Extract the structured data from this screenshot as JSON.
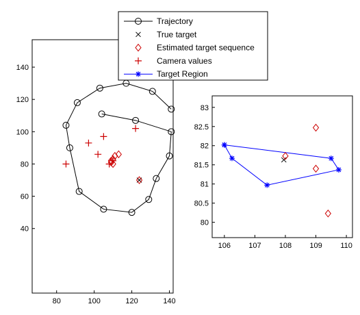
{
  "chart_data": [
    {
      "type": "scatter",
      "xlim": [
        67,
        142
      ],
      "ylim": [
        0,
        157
      ],
      "xticks": [
        80,
        100,
        120,
        140
      ],
      "yticks": [
        40,
        60,
        80,
        100,
        120,
        140
      ],
      "grid": false,
      "legend_position": "top-center",
      "series": [
        {
          "name": "Trajectory",
          "color": "#000000",
          "marker": "circle",
          "line": true,
          "x": [
            104,
            122,
            141,
            140,
            133,
            129,
            120,
            105,
            92,
            87,
            85,
            91,
            103,
            117,
            131,
            141
          ],
          "y": [
            111,
            107,
            100,
            85,
            71,
            58,
            50,
            52,
            63,
            90,
            104,
            118,
            127,
            130,
            125,
            114
          ]
        },
        {
          "name": "True target",
          "color": "#000000",
          "marker": "x",
          "line": false,
          "x": [
            124
          ],
          "y": [
            70
          ]
        },
        {
          "name": "Estimated target sequence",
          "color": "#cc0000",
          "marker": "diamond",
          "line": false,
          "x": [
            109,
            110,
            109,
            110,
            111,
            113,
            124
          ],
          "y": [
            82,
            80,
            81,
            83,
            85,
            86,
            70
          ]
        },
        {
          "name": "Camera values",
          "color": "#cc0000",
          "marker": "plus",
          "line": false,
          "x": [
            85,
            97,
            102,
            105,
            108,
            110,
            122
          ],
          "y": [
            80,
            93,
            86,
            97,
            80,
            82,
            102
          ]
        }
      ]
    },
    {
      "type": "scatter",
      "xlim": [
        105.6,
        110.2
      ],
      "ylim": [
        79.6,
        83.3
      ],
      "xticks": [
        106,
        107,
        108,
        109,
        110
      ],
      "yticks": [
        80,
        80.5,
        81,
        81.5,
        82,
        82.5,
        83
      ],
      "grid": false,
      "series": [
        {
          "name": "Target Region",
          "color": "#0000ff",
          "marker": "asterisk",
          "line": true,
          "closed": true,
          "x": [
            106,
            109.5,
            109.75,
            107.4,
            106.25,
            106
          ],
          "y": [
            82.02,
            81.67,
            81.37,
            80.97,
            81.67,
            82.02
          ]
        },
        {
          "name": "True target",
          "color": "#000000",
          "marker": "x",
          "line": false,
          "x": [
            107.95
          ],
          "y": [
            81.63
          ]
        },
        {
          "name": "Estimated target sequence",
          "color": "#cc0000",
          "marker": "diamond",
          "line": false,
          "x": [
            108,
            109,
            109,
            109.4
          ],
          "y": [
            81.73,
            82.47,
            81.4,
            80.23
          ]
        }
      ]
    }
  ],
  "legend": {
    "entries": [
      {
        "label": "Trajectory",
        "color": "#000000",
        "marker": "circle",
        "line": true
      },
      {
        "label": "True target",
        "color": "#000000",
        "marker": "x",
        "line": false
      },
      {
        "label": "Estimated target sequence",
        "color": "#cc0000",
        "marker": "diamond",
        "line": false
      },
      {
        "label": "Camera values",
        "color": "#cc0000",
        "marker": "plus",
        "line": false
      },
      {
        "label": "Target Region",
        "color": "#0000ff",
        "marker": "asterisk",
        "line": true
      }
    ]
  }
}
